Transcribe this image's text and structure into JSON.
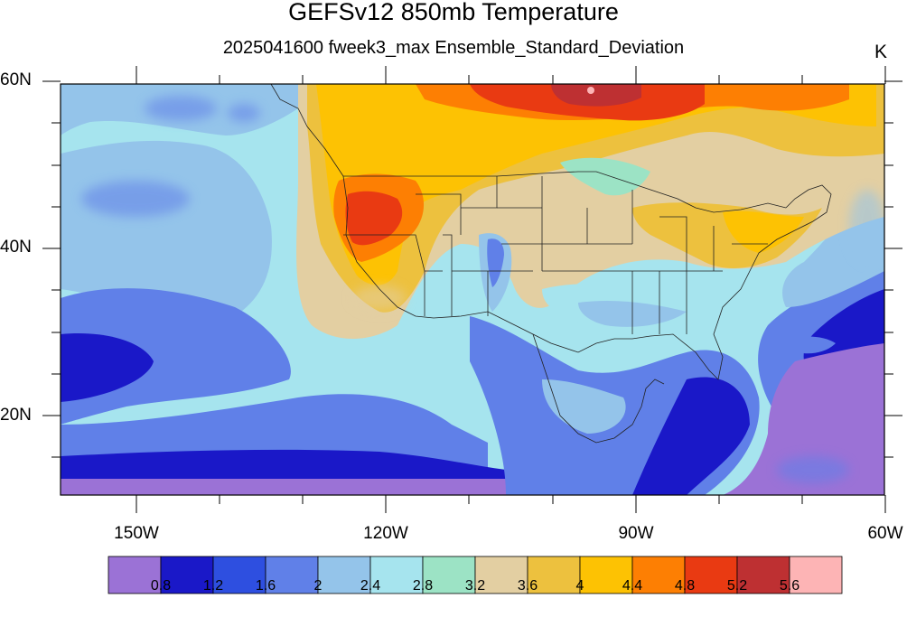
{
  "title": "GEFSv12 850mb Temperature",
  "subtitle": "2025041600 fweek3_max Ensemble_Standard_Deviation",
  "units": "K",
  "lat_labels": [
    "60N",
    "40N",
    "20N"
  ],
  "lon_labels": [
    "150W",
    "120W",
    "90W",
    "60W"
  ],
  "colorbar": {
    "colors": [
      "#9b72d6",
      "#1a18c8",
      "#2e4fe0",
      "#6080e8",
      "#94c4ea",
      "#a6e4ee",
      "#9ce3c5",
      "#e3cfa2",
      "#edc13e",
      "#fdc203",
      "#fd7f03",
      "#e93a12",
      "#be3032",
      "#fdb4b5"
    ],
    "labels": [
      "0.8",
      "1.2",
      "1.6",
      "2",
      "2.4",
      "2.8",
      "3.2",
      "3.6",
      "4",
      "4.4",
      "4.8",
      "5.2",
      "5.6"
    ]
  }
}
